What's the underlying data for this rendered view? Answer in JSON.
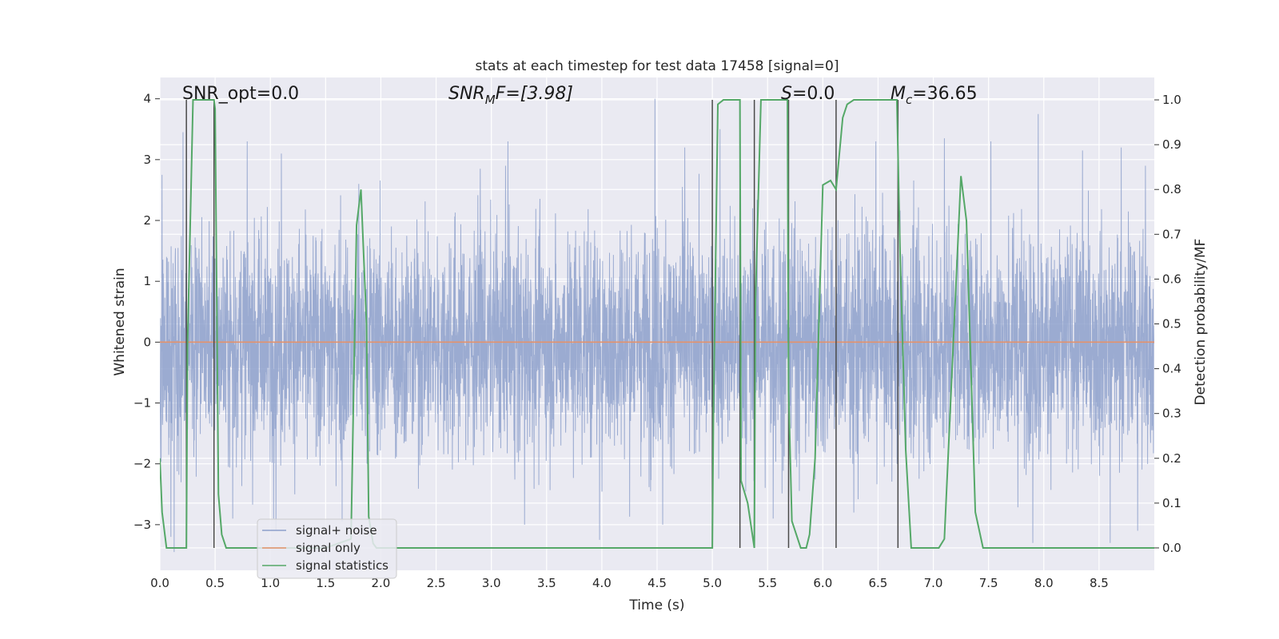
{
  "chart_data": {
    "type": "line",
    "title": "stats at each timestep for test data 17458 [signal=0]",
    "xlabel": "Time (s)",
    "ylabel": "Whitened strain",
    "ylabel_right": "Detection probability/MF",
    "xlim": [
      0.0,
      9.0
    ],
    "ylim": [
      -3.75,
      4.35
    ],
    "ylim_right": [
      -0.05,
      1.05
    ],
    "xticks": [
      "0.0",
      "0.5",
      "1.0",
      "1.5",
      "2.0",
      "2.5",
      "3.0",
      "3.5",
      "4.0",
      "4.5",
      "5.0",
      "5.5",
      "6.0",
      "6.5",
      "7.0",
      "7.5",
      "8.0",
      "8.5"
    ],
    "yticks": [
      "−3",
      "−2",
      "−1",
      "0",
      "1",
      "2",
      "3",
      "4"
    ],
    "yticks_right": [
      "0.0",
      "0.1",
      "0.2",
      "0.3",
      "0.4",
      "0.5",
      "0.6",
      "0.7",
      "0.8",
      "0.9",
      "1.0"
    ],
    "annotations": {
      "snr_opt": "SNR_opt=0.0",
      "snr_mf_base": "SNR",
      "snr_mf_sub": "M",
      "snr_mf_rest": "F=[3.98]",
      "s_base": "S",
      "s_rest": "=0.0",
      "mc_base": "M",
      "mc_sub": "c",
      "mc_rest": "=36.65"
    },
    "legend": [
      "signal+ noise",
      "signal only",
      "signal statistics"
    ],
    "legend_position": "lower-left",
    "series": [
      {
        "name": "signal+ noise",
        "color": "#8da0cb",
        "description": "whitened noisy strain, roughly within ±3.3",
        "extreme_peaks": [
          [
            0.02,
            2.75
          ],
          [
            0.21,
            3.45
          ],
          [
            0.79,
            3.3
          ],
          [
            1.1,
            3.1
          ],
          [
            1.8,
            2.6
          ],
          [
            2.9,
            2.85
          ],
          [
            3.15,
            3.3
          ],
          [
            4.48,
            4.0
          ],
          [
            4.75,
            3.2
          ],
          [
            5.07,
            3.5
          ],
          [
            6.48,
            3.3
          ],
          [
            7.1,
            3.35
          ],
          [
            7.52,
            3.3
          ],
          [
            7.95,
            3.75
          ],
          [
            8.35,
            3.15
          ],
          [
            8.7,
            3.2
          ],
          [
            8.92,
            2.9
          ],
          [
            0.1,
            -3.2
          ],
          [
            0.13,
            -3.45
          ],
          [
            0.66,
            -2.9
          ],
          [
            1.05,
            -3.1
          ],
          [
            1.65,
            -2.95
          ],
          [
            3.3,
            -3.0
          ],
          [
            3.98,
            -3.25
          ],
          [
            4.55,
            -3.0
          ],
          [
            5.55,
            -2.9
          ],
          [
            6.28,
            -2.8
          ],
          [
            7.9,
            -3.3
          ],
          [
            8.6,
            -3.3
          ],
          [
            8.85,
            -3.1
          ]
        ]
      },
      {
        "name": "signal only",
        "color": "#e5926b",
        "x": [
          0.0,
          9.0
        ],
        "y": [
          0.0,
          0.0
        ]
      },
      {
        "name": "signal statistics",
        "color": "#55a868",
        "axis": "right",
        "x": [
          0.0,
          0.02,
          0.06,
          0.24,
          0.25,
          0.3,
          0.49,
          0.5,
          0.53,
          0.56,
          0.6,
          0.65,
          1.0,
          1.5,
          1.73,
          1.78,
          1.82,
          1.87,
          1.89,
          1.93,
          1.96,
          2.0,
          2.3,
          3.0,
          4.0,
          4.8,
          5.0,
          5.01,
          5.05,
          5.1,
          5.25,
          5.26,
          5.32,
          5.38,
          5.39,
          5.44,
          5.68,
          5.69,
          5.72,
          5.8,
          5.85,
          5.88,
          5.93,
          6.0,
          6.07,
          6.12,
          6.18,
          6.22,
          6.28,
          6.4,
          6.6,
          6.67,
          6.7,
          6.75,
          6.8,
          7.05,
          7.1,
          7.25,
          7.3,
          7.38,
          7.45,
          7.55,
          8.0,
          9.0
        ],
        "y": [
          0.2,
          0.08,
          0.0,
          0.0,
          0.45,
          1.0,
          1.0,
          0.98,
          0.12,
          0.03,
          0.0,
          0.0,
          0.0,
          0.0,
          0.02,
          0.72,
          0.8,
          0.5,
          0.07,
          0.01,
          0.0,
          0.0,
          0.0,
          0.0,
          0.0,
          0.0,
          0.0,
          0.3,
          0.99,
          1.0,
          1.0,
          0.15,
          0.1,
          0.0,
          0.55,
          1.0,
          1.0,
          0.35,
          0.06,
          0.0,
          0.0,
          0.03,
          0.2,
          0.81,
          0.82,
          0.8,
          0.96,
          0.99,
          1.0,
          1.0,
          1.0,
          1.0,
          0.65,
          0.22,
          0.0,
          0.0,
          0.02,
          0.83,
          0.73,
          0.08,
          0.0,
          0.0,
          0.0,
          0.0
        ]
      },
      {
        "name": "detection markers",
        "color": "#4a4a4a",
        "x": [
          0.24,
          0.49,
          5.0,
          5.25,
          5.38,
          5.69,
          6.12,
          6.68
        ]
      }
    ]
  }
}
